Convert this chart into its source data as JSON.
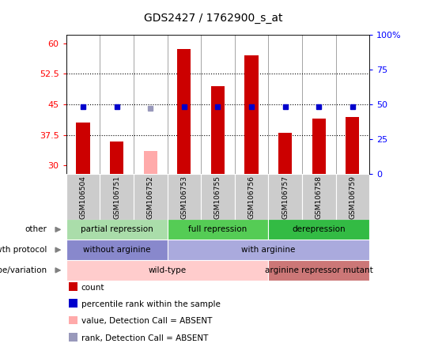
{
  "title": "GDS2427 / 1762900_s_at",
  "samples": [
    "GSM106504",
    "GSM106751",
    "GSM106752",
    "GSM106753",
    "GSM106755",
    "GSM106756",
    "GSM106757",
    "GSM106758",
    "GSM106759"
  ],
  "bar_values": [
    40.5,
    36.0,
    null,
    58.5,
    49.5,
    57.0,
    38.0,
    41.5,
    42.0
  ],
  "bar_absent": [
    null,
    null,
    33.5,
    null,
    null,
    null,
    null,
    null,
    null
  ],
  "percentile_values": [
    44.5,
    44.5,
    null,
    44.5,
    44.5,
    44.5,
    44.5,
    44.5,
    44.5
  ],
  "percentile_absent": [
    null,
    null,
    44.0,
    null,
    null,
    null,
    null,
    null,
    null
  ],
  "ylim_left": [
    28,
    62
  ],
  "ylim_right": [
    0,
    100
  ],
  "left_ticks": [
    30,
    37.5,
    45,
    52.5,
    60
  ],
  "left_tick_labels": [
    "30",
    "37.5",
    "45",
    "52.5",
    "60"
  ],
  "right_ticks": [
    0,
    25,
    50,
    75,
    100
  ],
  "right_tick_labels": [
    "0",
    "25",
    "50",
    "75",
    "100%"
  ],
  "bar_color": "#cc0000",
  "bar_absent_color": "#ffaaaa",
  "percentile_color": "#0000cc",
  "percentile_absent_color": "#9999bb",
  "dotted_lines": [
    37.5,
    45.0,
    52.5
  ],
  "groups_other": [
    {
      "label": "partial repression",
      "start": 0,
      "end": 3,
      "color": "#aaddaa"
    },
    {
      "label": "full repression",
      "start": 3,
      "end": 6,
      "color": "#55cc55"
    },
    {
      "label": "derepression",
      "start": 6,
      "end": 9,
      "color": "#33bb44"
    }
  ],
  "groups_growth": [
    {
      "label": "without arginine",
      "start": 0,
      "end": 3,
      "color": "#8888cc"
    },
    {
      "label": "with arginine",
      "start": 3,
      "end": 9,
      "color": "#aaaadd"
    }
  ],
  "groups_genotype": [
    {
      "label": "wild-type",
      "start": 0,
      "end": 6,
      "color": "#ffcccc"
    },
    {
      "label": "arginine repressor mutant",
      "start": 6,
      "end": 9,
      "color": "#cc7777"
    }
  ],
  "legend_items": [
    {
      "label": "count",
      "color": "#cc0000"
    },
    {
      "label": "percentile rank within the sample",
      "color": "#0000cc"
    },
    {
      "label": "value, Detection Call = ABSENT",
      "color": "#ffaaaa"
    },
    {
      "label": "rank, Detection Call = ABSENT",
      "color": "#9999bb"
    }
  ],
  "row_labels": [
    "other",
    "growth protocol",
    "genotype/variation"
  ],
  "plot_bg": "#ffffff"
}
